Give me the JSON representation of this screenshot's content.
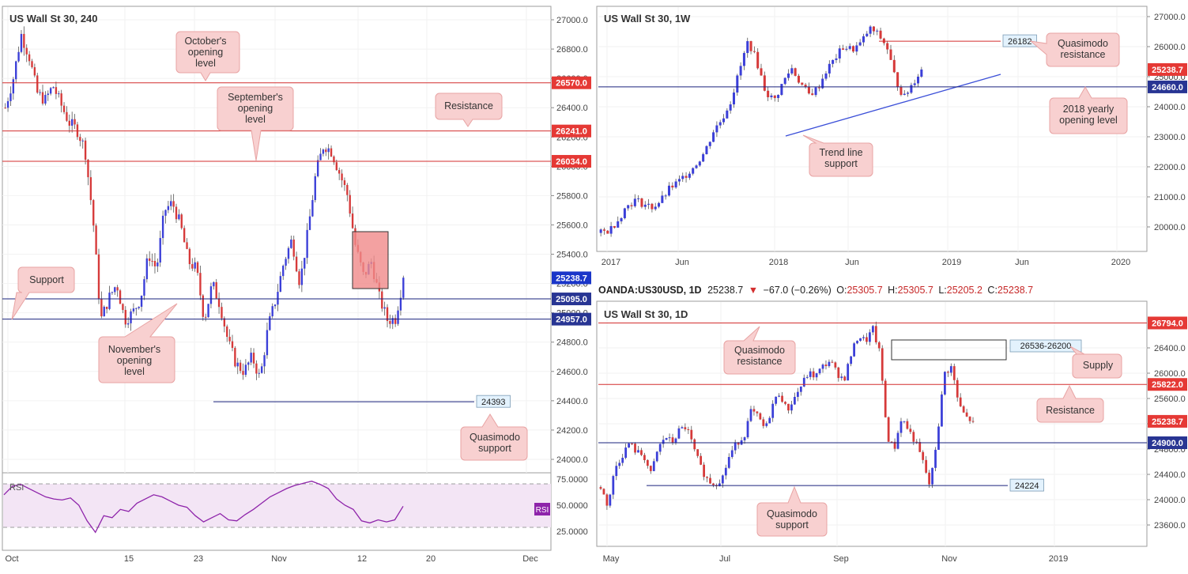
{
  "panel_left": {
    "title": "US Wall St 30, 240",
    "rsi_label": "RSI",
    "rsi_badge": "RSI",
    "annotations": {
      "october": "October's opening level",
      "september": "September's opening level",
      "resistance": "Resistance",
      "support": "Support",
      "november": "November's opening level",
      "quasimodo_support": "Quasimodo support"
    },
    "level_box": "24393"
  },
  "panel_weekly": {
    "title": "US Wall St 30, 1W",
    "annotations": {
      "quasimodo_resistance": "Quasimodo resistance",
      "yearly_open": "2018 yearly opening level",
      "trend_line": "Trend line support"
    },
    "level_box": "26182"
  },
  "panel_daily": {
    "header": {
      "symbol": "OANDA:US30USD, 1D",
      "price": "25238.7",
      "change": "−67.0 (−0.26%)",
      "o_label": "O:",
      "o": "25305.7",
      "h_label": "H:",
      "h": "25305.7",
      "l_label": "L:",
      "l": "25205.2",
      "c_label": "C:",
      "c": "25238.7"
    },
    "title": "US Wall St 30, 1D",
    "annotations": {
      "quasimodo_resistance": "Quasimodo resistance",
      "supply": "Supply",
      "resistance": "Resistance",
      "quasimodo_support": "Quasimodo support"
    },
    "supply_box": "26536-26200",
    "level_box": "24224"
  },
  "colors": {
    "bull": "#3b3fd8",
    "bear": "#d63a3a",
    "resistance_line": "#d32f2f",
    "support_line": "#1a237e",
    "trend_line": "#3b4fd8",
    "callout_fill": "#f8d0d0",
    "callout_stroke": "#e8a3a3",
    "rsi_line": "#8e24aa",
    "rsi_band": "#f3e5f5",
    "tag_red": "#e53935",
    "tag_blue": "#1a36c9",
    "tag_navy": "#283593"
  },
  "chart_data": [
    {
      "type": "candlestick",
      "title": "US Wall St 30, 240",
      "ylim": [
        23900,
        27100
      ],
      "y_ticks": [
        "27000.0",
        "26800.0",
        "26600.0",
        "26400.0",
        "26200.0",
        "26000.0",
        "25800.0",
        "25600.0",
        "25400.0",
        "25200.0",
        "25000.0",
        "24800.0",
        "24600.0",
        "24400.0",
        "24200.0",
        "24000.0"
      ],
      "x_ticks": [
        "Oct",
        "15",
        "23",
        "Nov",
        "12",
        "20",
        "Dec"
      ],
      "path": [
        26400,
        26600,
        26900,
        26750,
        26500,
        26450,
        26550,
        26420,
        26300,
        26250,
        26120,
        25650,
        24950,
        25100,
        25200,
        24950,
        25000,
        25100,
        25400,
        25300,
        25700,
        25750,
        25600,
        25350,
        25300,
        24950,
        25200,
        25050,
        24800,
        24650,
        24600,
        24700,
        24550,
        24900,
        25100,
        25350,
        25500,
        25200,
        25550,
        25950,
        26150,
        26100,
        25950,
        25800,
        25450,
        25250,
        25350,
        25100,
        24950,
        24960,
        25240
      ],
      "levels": [
        {
          "value": 26570.0,
          "label": "26570.0",
          "role": "resistance"
        },
        {
          "value": 26241.0,
          "label": "26241.0",
          "role": "resistance"
        },
        {
          "value": 26034.0,
          "label": "26034.0",
          "role": "resistance"
        },
        {
          "value": 25095.0,
          "label": "25095.0",
          "role": "support"
        },
        {
          "value": 24957.0,
          "label": "24957.0",
          "role": "support"
        },
        {
          "value": 24393,
          "label": "24393",
          "role": "quasimodo_support"
        }
      ],
      "last_price": {
        "value": 25238.7,
        "label": "25238.7"
      },
      "rsi": {
        "ylim": [
          15,
          80
        ],
        "ticks": [
          "75.0000",
          "50.0000",
          "25.0000"
        ],
        "band": [
          30,
          70
        ],
        "values": [
          60,
          68,
          70,
          66,
          62,
          58,
          56,
          55,
          57,
          50,
          35,
          24,
          40,
          38,
          46,
          44,
          52,
          56,
          60,
          58,
          54,
          50,
          48,
          40,
          34,
          38,
          42,
          36,
          35,
          41,
          46,
          52,
          58,
          62,
          66,
          69,
          71,
          73,
          70,
          66,
          56,
          50,
          46,
          35,
          33,
          36,
          34,
          36,
          49
        ]
      }
    },
    {
      "type": "candlestick",
      "title": "US Wall St 30, 1W",
      "ylim": [
        19600,
        27200
      ],
      "y_ticks": [
        "27000.0",
        "26000.0",
        "25000.0",
        "24000.0",
        "23000.0",
        "22000.0",
        "21000.0",
        "20000.0"
      ],
      "x_ticks": [
        "2017",
        "Jun",
        "2018",
        "Jun",
        "2019",
        "Jun",
        "2020"
      ],
      "path": [
        19800,
        19900,
        20250,
        20700,
        20900,
        20750,
        20650,
        20900,
        21300,
        21500,
        21800,
        22100,
        22500,
        23200,
        23600,
        24200,
        25200,
        26200,
        25500,
        24500,
        24200,
        24800,
        25300,
        24800,
        24400,
        24600,
        25200,
        25600,
        26000,
        25900,
        26100,
        26600,
        26400,
        26000,
        24900,
        24300,
        24800,
        25240
      ],
      "levels": [
        {
          "value": 26182,
          "label": "26182",
          "role": "quasimodo_resistance"
        },
        {
          "value": 24660.0,
          "label": "24660.0",
          "role": "yearly_open"
        }
      ],
      "trend_line": [
        {
          "x": "2018-02",
          "y": 23000
        },
        {
          "x": "2019-05",
          "y": 24850
        }
      ],
      "last_price": {
        "value": 25238.7,
        "label": "25238.7"
      }
    },
    {
      "type": "candlestick",
      "title": "US Wall St 30, 1D",
      "ylim": [
        23400,
        27000
      ],
      "y_ticks": [
        "26400.0",
        "26000.0",
        "25600.0",
        "25200.0",
        "24800.0",
        "24400.0",
        "24000.0",
        "23600.0"
      ],
      "x_ticks": [
        "May",
        "Jul",
        "Sep",
        "Nov",
        "2019"
      ],
      "path": [
        24200,
        23900,
        24500,
        24700,
        24900,
        24750,
        24700,
        24400,
        24800,
        25000,
        24900,
        25100,
        25150,
        24800,
        24500,
        24300,
        24250,
        24350,
        24700,
        24900,
        25000,
        25400,
        25300,
        25100,
        25500,
        25700,
        25400,
        25600,
        25800,
        26000,
        25950,
        26100,
        26200,
        26000,
        25900,
        26300,
        26600,
        26500,
        26700,
        26300,
        25000,
        24800,
        25300,
        25100,
        24900,
        24600,
        24200,
        25000,
        26000,
        26100,
        25500,
        25300,
        25238.7
      ],
      "levels": [
        {
          "value": 26794.0,
          "label": "26794.0",
          "role": "quasimodo_resistance"
        },
        {
          "value": 25822.0,
          "label": "25822.0",
          "role": "resistance"
        },
        {
          "value": 24900.0,
          "label": "24900.0",
          "role": "support"
        },
        {
          "value": 24224,
          "label": "24224",
          "role": "quasimodo_support"
        }
      ],
      "supply_zone": [
        26200,
        26536
      ],
      "last_price": {
        "value": 25238.7,
        "label": "25238.7"
      }
    }
  ]
}
